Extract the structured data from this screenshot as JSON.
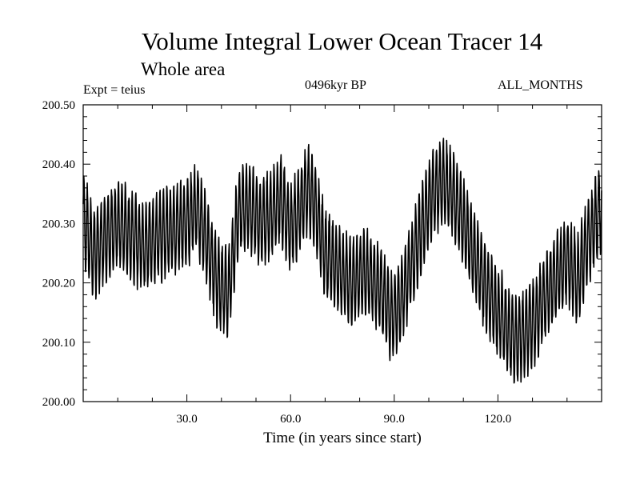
{
  "header": {
    "title": "Volume Integral Lower Ocean Tracer 14",
    "subtitle": "Whole area",
    "expt_label": "Expt = teius",
    "period_label": "0496kyr BP",
    "months_label": "ALL_MONTHS"
  },
  "chart_data": {
    "type": "line",
    "title": "Volume Integral Lower Ocean Tracer 14",
    "subtitle": "Whole area",
    "xlabel": "Time (in years since start)",
    "ylabel": "",
    "xlim": [
      0,
      150
    ],
    "ylim": [
      200.0,
      200.5
    ],
    "x_ticks": [
      30,
      60,
      90,
      120
    ],
    "x_tick_labels": [
      "30.0",
      "60.0",
      "90.0",
      "120.0"
    ],
    "y_ticks": [
      200.0,
      200.1,
      200.2,
      200.3,
      200.4,
      200.5
    ],
    "y_tick_labels": [
      "200.00",
      "200.10",
      "200.20",
      "200.30",
      "200.40",
      "200.50"
    ],
    "grid": false,
    "series": [
      {
        "name": "Volume Integral Lower Ocean Tracer 14",
        "sampling": "monthly",
        "seasonal_amplitude": 0.07,
        "envelope_x": [
          0,
          3,
          6,
          10,
          14,
          18,
          22,
          26,
          30,
          33,
          36,
          39,
          42,
          45,
          48,
          51,
          54,
          57,
          60,
          63,
          65,
          67,
          70,
          74,
          78,
          82,
          86,
          89,
          92,
          95,
          98,
          101,
          104,
          107,
          110,
          113,
          116,
          119,
          122,
          125,
          128,
          131,
          134,
          137,
          140,
          143,
          146,
          150
        ],
        "envelope_y": [
          200.31,
          200.25,
          200.27,
          200.3,
          200.28,
          200.26,
          200.28,
          200.29,
          200.3,
          200.33,
          200.26,
          200.2,
          200.18,
          200.32,
          200.33,
          200.3,
          200.31,
          200.34,
          200.29,
          200.33,
          200.36,
          200.33,
          200.25,
          200.22,
          200.2,
          200.22,
          200.19,
          200.14,
          200.17,
          200.23,
          200.29,
          200.35,
          200.37,
          200.35,
          200.3,
          200.25,
          200.2,
          200.16,
          200.13,
          200.1,
          200.12,
          200.14,
          200.18,
          200.21,
          200.24,
          200.2,
          200.27,
          200.33
        ]
      }
    ]
  }
}
